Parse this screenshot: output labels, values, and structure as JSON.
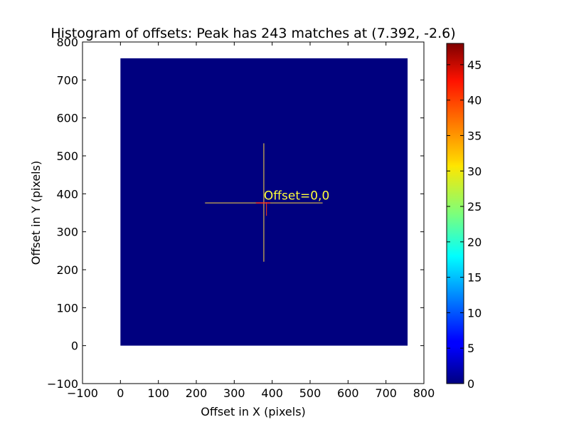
{
  "chart_data": {
    "type": "heatmap",
    "title": "Histogram of offsets: Peak has 243 matches at (7.392, -2.6)",
    "xlabel": "Offset in X (pixels)",
    "ylabel": "Offset in Y (pixels)",
    "xlim": [
      -100,
      800
    ],
    "ylim": [
      -100,
      800
    ],
    "x_ticks": [
      -100,
      0,
      100,
      200,
      300,
      400,
      500,
      600,
      700,
      800
    ],
    "y_ticks": [
      -100,
      0,
      100,
      200,
      300,
      400,
      500,
      600,
      700,
      800
    ],
    "heatmap_extent": {
      "x": [
        0,
        757
      ],
      "y": [
        0,
        757
      ]
    },
    "background_value": 0,
    "peak": {
      "x": 7.392,
      "y": -2.6,
      "count": 243
    },
    "crosshair": {
      "center": [
        378,
        376
      ],
      "horizontal_x_range": [
        223,
        533
      ],
      "vertical_y_range": [
        221,
        533
      ],
      "color": "#ffd840"
    },
    "peak_marks": {
      "horizontal_x_range": [
        357,
        395
      ],
      "vertical_y_range": [
        342,
        378
      ],
      "color": "#ff3a1a"
    },
    "annotation": {
      "text": "Offset=0,0",
      "x": 378,
      "y": 385,
      "color": "#ffff3b"
    },
    "colorbar": {
      "min": 0,
      "max": 48,
      "ticks": [
        0,
        5,
        10,
        15,
        20,
        25,
        30,
        35,
        40,
        45
      ],
      "colormap": "jet"
    },
    "grid": false
  }
}
